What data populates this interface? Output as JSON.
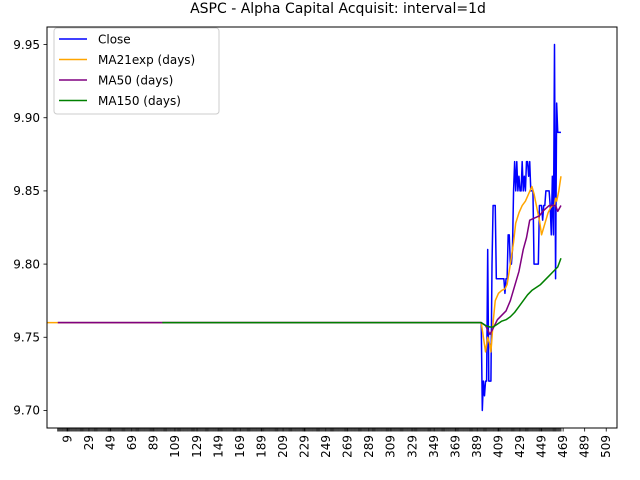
{
  "chart_data": {
    "type": "line",
    "title": "ASPC - Alpha Capital Acquisit: interval=1d",
    "xlabel": "",
    "ylabel": "",
    "xlim": [
      -10,
      519
    ],
    "ylim": [
      9.688,
      9.962
    ],
    "x_ticks": [
      9,
      29,
      49,
      69,
      89,
      109,
      129,
      149,
      169,
      189,
      209,
      229,
      249,
      269,
      289,
      309,
      329,
      349,
      369,
      389,
      409,
      429,
      449,
      469,
      489,
      509
    ],
    "y_ticks": [
      9.7,
      9.75,
      9.8,
      9.85,
      9.9,
      9.95
    ],
    "grid": false,
    "legend_position": "top-left",
    "series": [
      {
        "name": "Close",
        "color": "#0000ff",
        "points": [
          [
            0,
            9.76
          ],
          [
            393,
            9.76
          ],
          [
            394,
            9.7
          ],
          [
            395,
            9.72
          ],
          [
            396,
            9.71
          ],
          [
            397,
            9.72
          ],
          [
            398,
            9.72
          ],
          [
            399,
            9.81
          ],
          [
            400,
            9.72
          ],
          [
            401,
            9.72
          ],
          [
            402,
            9.72
          ],
          [
            403,
            9.8
          ],
          [
            404,
            9.84
          ],
          [
            405,
            9.84
          ],
          [
            406,
            9.84
          ],
          [
            407,
            9.79
          ],
          [
            408,
            9.79
          ],
          [
            409,
            9.79
          ],
          [
            410,
            9.79
          ],
          [
            411,
            9.79
          ],
          [
            412,
            9.79
          ],
          [
            413,
            9.79
          ],
          [
            414,
            9.79
          ],
          [
            415,
            9.78
          ],
          [
            416,
            9.79
          ],
          [
            417,
            9.79
          ],
          [
            418,
            9.82
          ],
          [
            419,
            9.82
          ],
          [
            420,
            9.8
          ],
          [
            421,
            9.8
          ],
          [
            422,
            9.81
          ],
          [
            423,
            9.85
          ],
          [
            424,
            9.87
          ],
          [
            425,
            9.85
          ],
          [
            426,
            9.87
          ],
          [
            427,
            9.85
          ],
          [
            428,
            9.86
          ],
          [
            429,
            9.85
          ],
          [
            430,
            9.85
          ],
          [
            431,
            9.87
          ],
          [
            432,
            9.85
          ],
          [
            433,
            9.86
          ],
          [
            434,
            9.85
          ],
          [
            435,
            9.87
          ],
          [
            436,
            9.87
          ],
          [
            437,
            9.86
          ],
          [
            438,
            9.87
          ],
          [
            439,
            9.85
          ],
          [
            440,
            9.85
          ],
          [
            441,
            9.85
          ],
          [
            442,
            9.8
          ],
          [
            443,
            9.8
          ],
          [
            444,
            9.8
          ],
          [
            445,
            9.8
          ],
          [
            446,
            9.8
          ],
          [
            447,
            9.84
          ],
          [
            448,
            9.84
          ],
          [
            449,
            9.84
          ],
          [
            450,
            9.83
          ],
          [
            451,
            9.84
          ],
          [
            452,
            9.84
          ],
          [
            453,
            9.85
          ],
          [
            454,
            9.85
          ],
          [
            455,
            9.85
          ],
          [
            456,
            9.85
          ],
          [
            457,
            9.84
          ],
          [
            458,
            9.82
          ],
          [
            459,
            9.86
          ],
          [
            460,
            9.82
          ],
          [
            461,
            9.95
          ],
          [
            462,
            9.79
          ],
          [
            463,
            9.91
          ],
          [
            464,
            9.89
          ],
          [
            465,
            9.89
          ],
          [
            466,
            9.89
          ],
          [
            467,
            9.89
          ]
        ]
      },
      {
        "name": "MA21exp (days)",
        "color": "#ffa500",
        "points": [
          [
            -10,
            9.76
          ],
          [
            388,
            9.76
          ],
          [
            393,
            9.76
          ],
          [
            395,
            9.75
          ],
          [
            397,
            9.74
          ],
          [
            399,
            9.75
          ],
          [
            401,
            9.745
          ],
          [
            402,
            9.74
          ],
          [
            404,
            9.76
          ],
          [
            406,
            9.775
          ],
          [
            409,
            9.78
          ],
          [
            412,
            9.782
          ],
          [
            415,
            9.783
          ],
          [
            417,
            9.786
          ],
          [
            420,
            9.8
          ],
          [
            423,
            9.815
          ],
          [
            425,
            9.828
          ],
          [
            428,
            9.835
          ],
          [
            431,
            9.84
          ],
          [
            434,
            9.843
          ],
          [
            437,
            9.848
          ],
          [
            440,
            9.853
          ],
          [
            442,
            9.848
          ],
          [
            445,
            9.837
          ],
          [
            447,
            9.83
          ],
          [
            449,
            9.82
          ],
          [
            451,
            9.825
          ],
          [
            453,
            9.83
          ],
          [
            455,
            9.835
          ],
          [
            457,
            9.838
          ],
          [
            459,
            9.84
          ],
          [
            461,
            9.84
          ],
          [
            462,
            9.845
          ],
          [
            463,
            9.843
          ],
          [
            465,
            9.85
          ],
          [
            467,
            9.86
          ]
        ]
      },
      {
        "name": "MA50 (days)",
        "color": "#800080",
        "points": [
          [
            0,
            9.76
          ],
          [
            393,
            9.76
          ],
          [
            397,
            9.758
          ],
          [
            401,
            9.752
          ],
          [
            404,
            9.756
          ],
          [
            408,
            9.762
          ],
          [
            412,
            9.765
          ],
          [
            416,
            9.768
          ],
          [
            420,
            9.775
          ],
          [
            424,
            9.785
          ],
          [
            428,
            9.795
          ],
          [
            432,
            9.81
          ],
          [
            435,
            9.818
          ],
          [
            438,
            9.83
          ],
          [
            441,
            9.831
          ],
          [
            444,
            9.832
          ],
          [
            447,
            9.833
          ],
          [
            450,
            9.836
          ],
          [
            453,
            9.838
          ],
          [
            456,
            9.84
          ],
          [
            459,
            9.84
          ],
          [
            462,
            9.84
          ],
          [
            464,
            9.836
          ],
          [
            467,
            9.84
          ]
        ]
      },
      {
        "name": "MA150 (days)",
        "color": "#008000",
        "points": [
          [
            97,
            9.76
          ],
          [
            393,
            9.76
          ],
          [
            397,
            9.758
          ],
          [
            401,
            9.757
          ],
          [
            404,
            9.757
          ],
          [
            408,
            9.759
          ],
          [
            412,
            9.761
          ],
          [
            416,
            9.762
          ],
          [
            420,
            9.764
          ],
          [
            424,
            9.767
          ],
          [
            428,
            9.771
          ],
          [
            432,
            9.775
          ],
          [
            436,
            9.779
          ],
          [
            440,
            9.782
          ],
          [
            444,
            9.784
          ],
          [
            448,
            9.786
          ],
          [
            452,
            9.789
          ],
          [
            456,
            9.792
          ],
          [
            460,
            9.795
          ],
          [
            464,
            9.798
          ],
          [
            467,
            9.804
          ]
        ]
      }
    ]
  }
}
